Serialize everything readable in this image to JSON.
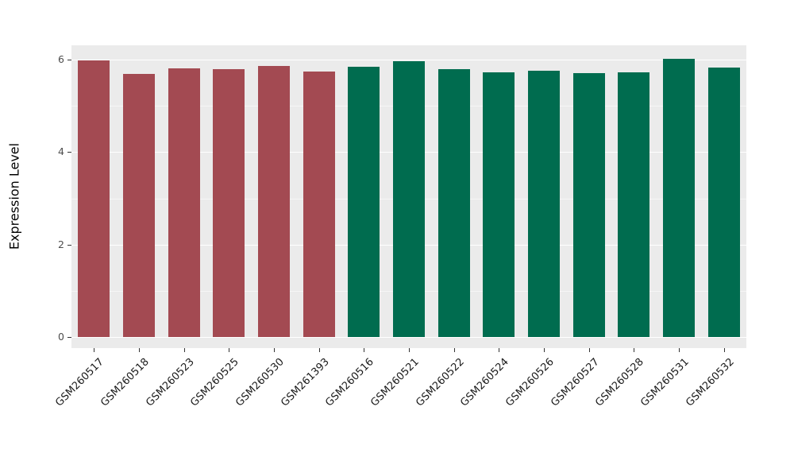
{
  "chart_data": {
    "type": "bar",
    "title": "",
    "xlabel": "",
    "ylabel": "Expression Level",
    "ylim": [
      0,
      6.3
    ],
    "yticks": [
      0,
      2,
      4,
      6
    ],
    "yticks_minor": [
      1,
      3,
      5
    ],
    "grid": "on",
    "legend_position": "none",
    "panel_background": "#ebebeb",
    "categories": [
      "GSM260517",
      "GSM260518",
      "GSM260523",
      "GSM260525",
      "GSM260530",
      "GSM261393",
      "GSM260516",
      "GSM260521",
      "GSM260522",
      "GSM260524",
      "GSM260526",
      "GSM260527",
      "GSM260528",
      "GSM260531",
      "GSM260532"
    ],
    "series": [
      {
        "name": "Expression Level",
        "values": [
          5.98,
          5.69,
          5.81,
          5.8,
          5.87,
          5.75,
          5.85,
          5.97,
          5.8,
          5.73,
          5.76,
          5.71,
          5.73,
          6.02,
          5.82
        ]
      }
    ],
    "group_colors": {
      "group1": "#a34a52",
      "group2": "#006c4f"
    },
    "bar_colors": [
      "#a34a52",
      "#a34a52",
      "#a34a52",
      "#a34a52",
      "#a34a52",
      "#a34a52",
      "#006c4f",
      "#006c4f",
      "#006c4f",
      "#006c4f",
      "#006c4f",
      "#006c4f",
      "#006c4f",
      "#006c4f",
      "#006c4f"
    ]
  }
}
